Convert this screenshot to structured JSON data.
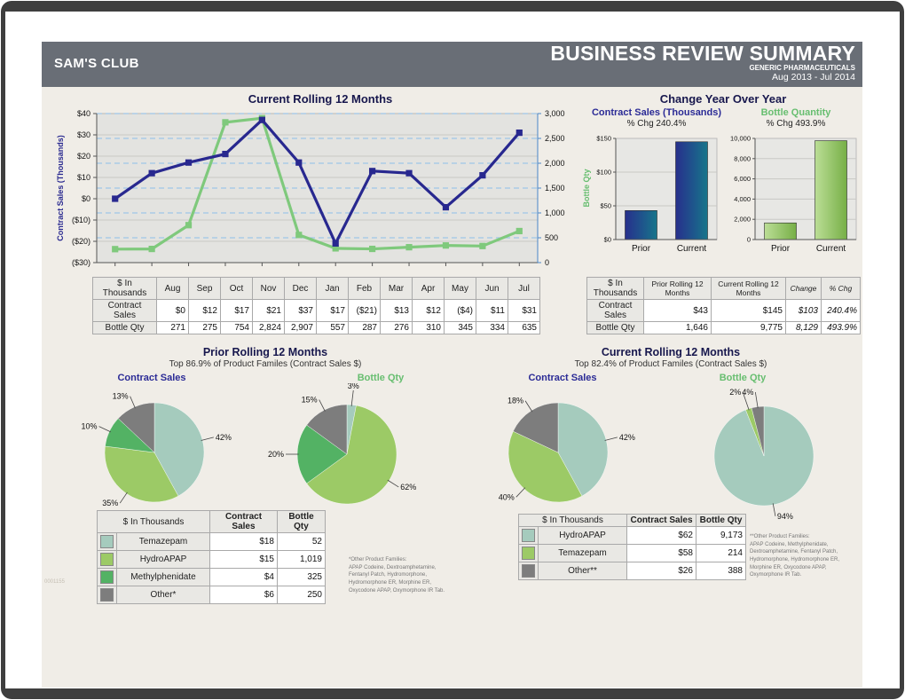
{
  "page": {
    "client": "SAM'S CLUB",
    "title": "BUSINESS REVIEW SUMMARY",
    "subtitle": "GENERIC PHARMACEUTICALS",
    "period": "Aug 2013 - Jul 2014",
    "doc_number": "0001155"
  },
  "palette": {
    "navy": "#28288F",
    "line_green": "#7FC97C",
    "teal": "#A5CBBD",
    "light_green": "#9CCA66",
    "mid_green": "#53B264",
    "gray": "#7D7D7D",
    "header_gray": "#696E76",
    "page_beige": "#F0EDE7"
  },
  "chart_data": [
    {
      "id": "rolling12_line",
      "type": "line",
      "title": "Current Rolling 12 Months",
      "x": [
        "Aug",
        "Sep",
        "Oct",
        "Nov",
        "Dec",
        "Jan",
        "Feb",
        "Mar",
        "Apr",
        "May",
        "Jun",
        "Jul"
      ],
      "series": [
        {
          "name": "Contract Sales",
          "axis": "left",
          "color": "navy",
          "values": [
            0,
            12,
            17,
            21,
            37,
            17,
            -21,
            13,
            12,
            -4,
            11,
            31
          ]
        },
        {
          "name": "Bottle Qty",
          "axis": "right",
          "color": "line_green",
          "values": [
            271,
            275,
            754,
            2824,
            2907,
            557,
            287,
            276,
            310,
            345,
            334,
            635
          ]
        }
      ],
      "left_axis": {
        "label": "Contract Sales (Thousands)",
        "min": -30,
        "max": 40,
        "step": 10,
        "tick_labels": [
          "($30)",
          "($20)",
          "($10)",
          "$0",
          "$10",
          "$20",
          "$30",
          "$40"
        ]
      },
      "right_axis": {
        "label": "Bottle Qty",
        "min": 0,
        "max": 3000,
        "step": 500,
        "tick_labels": [
          "0",
          "500",
          "1,000",
          "1,500",
          "2,000",
          "2,500",
          "3,000"
        ]
      },
      "grid": "horizontal-solid-left-dashed-right",
      "legend": "none"
    },
    {
      "id": "yoy_contract_sales",
      "type": "bar",
      "title": "Contract Sales (Thousands)",
      "subtitle": "% Chg 240.4%",
      "categories": [
        "Prior",
        "Current"
      ],
      "values": [
        43,
        145
      ],
      "ylim": [
        0,
        150
      ],
      "ticks": [
        {
          "v": 0,
          "label": "$0"
        },
        {
          "v": 50,
          "label": "$50"
        },
        {
          "v": 100,
          "label": "$100"
        },
        {
          "v": 150,
          "label": "$150"
        }
      ],
      "bar_gradient": [
        "#272F8C",
        "#17768B"
      ]
    },
    {
      "id": "yoy_bottle_qty",
      "type": "bar",
      "title": "Bottle Quantity",
      "subtitle": "% Chg 493.9%",
      "categories": [
        "Prior",
        "Current"
      ],
      "values": [
        1646,
        9775
      ],
      "ylim": [
        0,
        10000
      ],
      "ticks": [
        {
          "v": 0,
          "label": "0"
        },
        {
          "v": 2000,
          "label": "2,000"
        },
        {
          "v": 4000,
          "label": "4,000"
        },
        {
          "v": 6000,
          "label": "6,000"
        },
        {
          "v": 8000,
          "label": "8,000"
        },
        {
          "v": 10000,
          "label": "10,000"
        }
      ],
      "bar_gradient": [
        "#BCDE97",
        "#76AF46"
      ]
    },
    {
      "id": "prior_contract_sales_pie",
      "type": "pie",
      "title": "Contract Sales",
      "slices": [
        {
          "label": "42%",
          "value": 42,
          "color": "teal",
          "product": "Temazepam"
        },
        {
          "label": "35%",
          "value": 35,
          "color": "light_green",
          "product": "HydroAPAP"
        },
        {
          "label": "10%",
          "value": 10,
          "color": "mid_green",
          "product": "Methylphenidate"
        },
        {
          "label": "13%",
          "value": 13,
          "color": "gray",
          "product": "Other*"
        }
      ]
    },
    {
      "id": "prior_bottle_qty_pie",
      "type": "pie",
      "title": "Bottle Qty",
      "slices": [
        {
          "label": "3%",
          "value": 3,
          "color": "teal",
          "product": "Temazepam"
        },
        {
          "label": "62%",
          "value": 62,
          "color": "light_green",
          "product": "HydroAPAP"
        },
        {
          "label": "20%",
          "value": 20,
          "color": "mid_green",
          "product": "Methylphenidate"
        },
        {
          "label": "15%",
          "value": 15,
          "color": "gray",
          "product": "Other*"
        }
      ]
    },
    {
      "id": "current_contract_sales_pie",
      "type": "pie",
      "title": "Contract Sales",
      "slices": [
        {
          "label": "42%",
          "value": 42,
          "color": "teal",
          "product": "HydroAPAP"
        },
        {
          "label": "40%",
          "value": 40,
          "color": "light_green",
          "product": "Temazepam"
        },
        {
          "label": "18%",
          "value": 18,
          "color": "gray",
          "product": "Other**"
        }
      ]
    },
    {
      "id": "current_bottle_qty_pie",
      "type": "pie",
      "title": "Bottle Qty",
      "slices": [
        {
          "label": "94%",
          "value": 94,
          "color": "teal",
          "product": "HydroAPAP"
        },
        {
          "label": "2%",
          "value": 2,
          "color": "light_green",
          "product": "Temazepam"
        },
        {
          "label": "4%",
          "value": 4,
          "color": "gray",
          "product": "Other**"
        }
      ]
    }
  ],
  "monthly_table": {
    "corner": "$ In Thousands",
    "rows": [
      {
        "label": "Contract Sales",
        "values": [
          "$0",
          "$12",
          "$17",
          "$21",
          "$37",
          "$17",
          "($21)",
          "$13",
          "$12",
          "($4)",
          "$11",
          "$31"
        ]
      },
      {
        "label": "Bottle Qty",
        "values": [
          "271",
          "275",
          "754",
          "2,824",
          "2,907",
          "557",
          "287",
          "276",
          "310",
          "345",
          "334",
          "635"
        ]
      }
    ]
  },
  "yoy": {
    "title": "Change Year Over Year",
    "table": {
      "corner": "$ In Thousands",
      "columns": [
        "Prior Rolling 12 Months",
        "Current Rolling 12 Months",
        "Change",
        "% Chg"
      ],
      "rows": [
        {
          "label": "Contract Sales",
          "values": [
            "$43",
            "$145",
            "$103",
            "240.4%"
          ]
        },
        {
          "label": "Bottle Qty",
          "values": [
            "1,646",
            "9,775",
            "8,129",
            "493.9%"
          ]
        }
      ]
    }
  },
  "pie_sections": [
    {
      "title": "Prior Rolling 12 Months",
      "subtitle": "Top 86.9% of Product Familes (Contract Sales $)",
      "table": {
        "corner": "$ In Thousands",
        "columns": [
          "Contract Sales",
          "Bottle Qty"
        ],
        "rows": [
          {
            "swatch": "teal",
            "name": "Temazepam",
            "contract_sales": "$18",
            "bottle_qty": "52"
          },
          {
            "swatch": "light_green",
            "name": "HydroAPAP",
            "contract_sales": "$15",
            "bottle_qty": "1,019"
          },
          {
            "swatch": "mid_green",
            "name": "Methylphenidate",
            "contract_sales": "$4",
            "bottle_qty": "325"
          },
          {
            "swatch": "gray",
            "name": "Other*",
            "contract_sales": "$6",
            "bottle_qty": "250"
          }
        ]
      },
      "footnote": "*Other Product Families:\nAPAP Codeine, Dextroamphetamine,\nFentanyl Patch, Hydromorphone,\nHydromorphone ER, Morphine ER,\nOxycodone APAP, Oxymorphone IR Tab."
    },
    {
      "title": "Current Rolling 12 Months",
      "subtitle": "Top 82.4% of Product Familes (Contract Sales $)",
      "table": {
        "corner": "$ In Thousands",
        "columns": [
          "Contract Sales",
          "Bottle Qty"
        ],
        "rows": [
          {
            "swatch": "teal",
            "name": "HydroAPAP",
            "contract_sales": "$62",
            "bottle_qty": "9,173"
          },
          {
            "swatch": "light_green",
            "name": "Temazepam",
            "contract_sales": "$58",
            "bottle_qty": "214"
          },
          {
            "swatch": "gray",
            "name": "Other**",
            "contract_sales": "$26",
            "bottle_qty": "388"
          }
        ]
      },
      "footnote": "**Other Product Families:\nAPAP Codeine, Methylphenidate,\nDextroamphetamine, Fentanyl Patch,\nHydromorphone, Hydromorphone ER,\nMorphine ER, Oxycodone APAP,\nOxymorphone IR Tab."
    }
  ]
}
